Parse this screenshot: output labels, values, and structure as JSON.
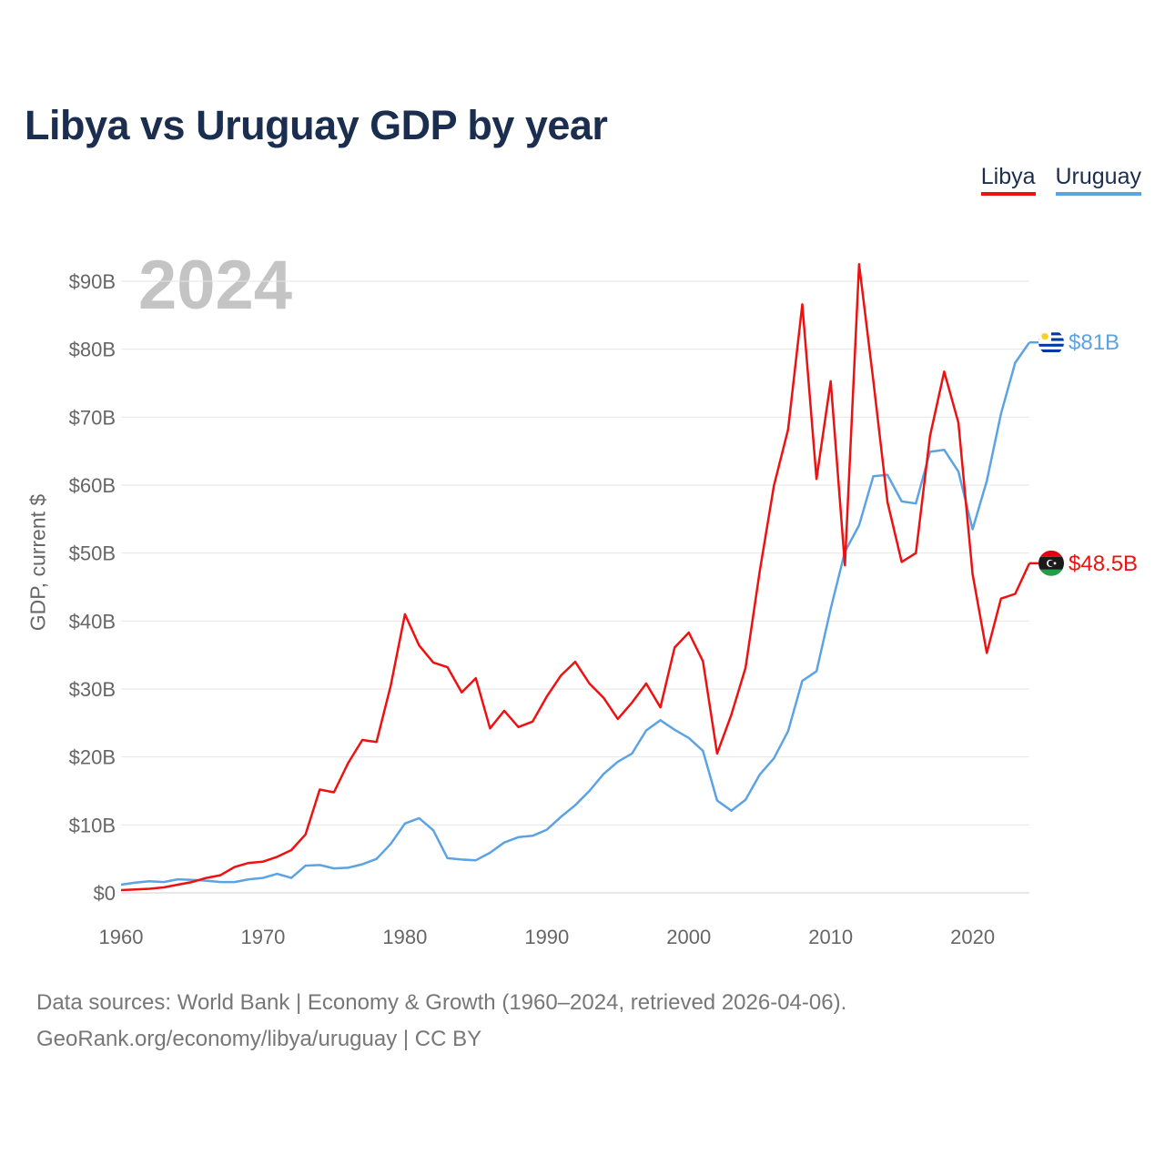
{
  "header": {
    "title": "Libya vs Uruguay GDP by year"
  },
  "legend": {
    "libya": "Libya",
    "uruguay": "Uruguay"
  },
  "year_badge": "2024",
  "colors": {
    "libya": "#ee1111",
    "uruguay": "#5ca3e4",
    "grid": "#e6e6e6",
    "title": "#1b2e4f"
  },
  "icons": {
    "libya": "libya-flag-icon",
    "uruguay": "uruguay-flag-icon"
  },
  "footer": {
    "line1": "Data sources: World Bank | Economy & Growth (1960–2024, retrieved 2026-04-06).",
    "line2": "GeoRank.org/economy/libya/uruguay | CC BY"
  },
  "chart_data": {
    "type": "line",
    "title": "Libya vs Uruguay GDP by year",
    "xlabel": "",
    "ylabel": "GDP, current $",
    "xlim": [
      1960,
      2024
    ],
    "ylim": [
      0,
      90
    ],
    "y_unit": "billion USD",
    "x_ticks": [
      "1960",
      "1970",
      "1980",
      "1990",
      "2000",
      "2010",
      "2020"
    ],
    "y_ticks": [
      "$0",
      "$10B",
      "$20B",
      "$30B",
      "$40B",
      "$50B",
      "$60B",
      "$70B",
      "$80B",
      "$90B"
    ],
    "grid": true,
    "legend_position": "top-right",
    "series": [
      {
        "name": "Libya",
        "end_label": "$48.5B",
        "start_year": 1960,
        "values": [
          0.4,
          0.5,
          0.6,
          0.8,
          1.2,
          1.6,
          2.2,
          2.6,
          3.8,
          4.4,
          4.6,
          5.3,
          6.3,
          8.6,
          15.2,
          14.8,
          19.1,
          22.5,
          22.2,
          30.5,
          41,
          36.4,
          33.9,
          33.2,
          29.5,
          31.6,
          24.2,
          26.8,
          24.4,
          25.2,
          28.9,
          32,
          34,
          30.8,
          28.7,
          25.6,
          28,
          30.8,
          27.3,
          36.1,
          38.3,
          34.1,
          20.5,
          26.2,
          33.1,
          47.3,
          59.9,
          68.2,
          86.6,
          60.9,
          75.3,
          48.2,
          92.5,
          75.4,
          57.5,
          48.7,
          50,
          67.2,
          76.7,
          69.2,
          46.9,
          35.3,
          43.3,
          44,
          48.5
        ]
      },
      {
        "name": "Uruguay",
        "end_label": "$81B",
        "start_year": 1960,
        "values": [
          1.2,
          1.5,
          1.7,
          1.6,
          2,
          1.9,
          1.8,
          1.6,
          1.6,
          2,
          2.2,
          2.8,
          2.2,
          4,
          4.1,
          3.6,
          3.7,
          4.2,
          5,
          7.2,
          10.2,
          11,
          9.2,
          5.1,
          4.9,
          4.8,
          5.9,
          7.4,
          8.2,
          8.4,
          9.3,
          11.2,
          12.9,
          15,
          17.5,
          19.3,
          20.5,
          23.9,
          25.4,
          24,
          22.8,
          20.9,
          13.6,
          12.1,
          13.7,
          17.4,
          19.8,
          23.8,
          31.2,
          32.6,
          41.8,
          50.2,
          54.1,
          61.3,
          61.5,
          57.6,
          57.3,
          64.9,
          65.2,
          62,
          53.5,
          60.6,
          70.5,
          78,
          81
        ]
      }
    ]
  }
}
